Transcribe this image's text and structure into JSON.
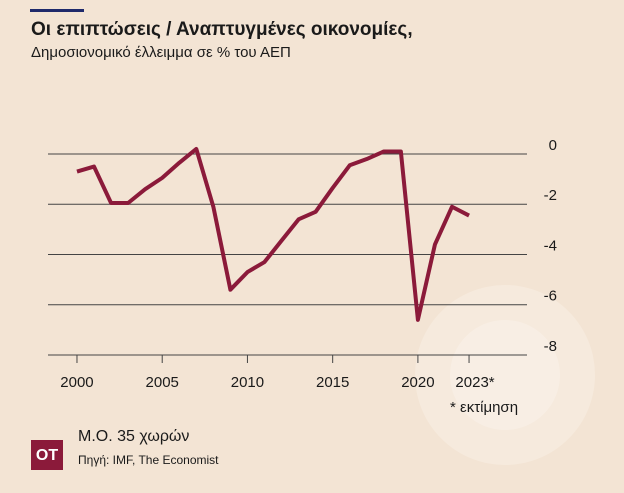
{
  "chart_data": {
    "type": "line",
    "title": "Οι επιπτώσεις  / Αναπτυγμένες οικονομίες,",
    "subtitle": "Δημοσιονομικό έλλειμμα σε % του ΑΕΠ",
    "x": [
      2000,
      2001,
      2002,
      2003,
      2004,
      2005,
      2006,
      2007,
      2008,
      2009,
      2010,
      2011,
      2012,
      2013,
      2014,
      2015,
      2016,
      2017,
      2018,
      2019,
      2020,
      2021,
      2022,
      2023
    ],
    "series": [
      {
        "name": "Μ.Ο. 35 χωρών",
        "color": "#8b1a3a",
        "values": [
          -0.7,
          -0.5,
          -1.95,
          -1.95,
          -1.4,
          -0.95,
          -0.35,
          0.2,
          -2.1,
          -5.4,
          -4.7,
          -4.3,
          -3.45,
          -2.6,
          -2.3,
          -1.35,
          -0.45,
          -0.2,
          0.1,
          0.1,
          -6.6,
          -3.6,
          -2.1,
          -2.45
        ]
      }
    ],
    "xlim": [
      1998.3,
      2026.4
    ],
    "xticks": [
      2000,
      2005,
      2010,
      2015,
      2020,
      {
        "value": 2023,
        "label": "2023*"
      }
    ],
    "ylim": [
      -8,
      0
    ],
    "yticks": [
      0,
      -2,
      -4,
      -6,
      -8
    ],
    "grid": true,
    "annotation": "* εκτίμηση",
    "source": "Πηγή: IMF, The Economist",
    "logo": "OT"
  }
}
